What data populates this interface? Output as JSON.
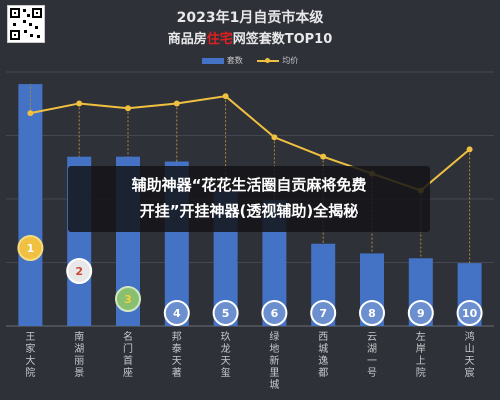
{
  "header": {
    "title_line1": "2023年1月自贡市本级",
    "title_line2_before": "商品房",
    "title_line2_highlight": "住宅",
    "title_line2_after": "网签套数TOP10"
  },
  "overlay_caption": "辅助神器“花花生活圈自贡麻将免费\n开挂”开挂神器(透视辅助)全揭秘",
  "colors": {
    "bar": "#4472c4",
    "line": "#f0c040",
    "background": "#2e3138",
    "badge_gold": "#f0c040",
    "badge_silver": "#e8e8e8",
    "badge_bronze": "#88c070",
    "badge_blue": "#6b8fcf",
    "highlight_red": "#e02020"
  },
  "chart_data": {
    "type": "bar",
    "categories": [
      "王家大院",
      "南湖丽景",
      "名门首座",
      "邦泰天著",
      "玖龙天玺",
      "绿地新里城",
      "西城逸都",
      "云湖一号",
      "左岸上院",
      "鸿山天宸"
    ],
    "series": [
      {
        "name": "套数",
        "type": "bar",
        "values": [
          100,
          70,
          70,
          68,
          56,
          52,
          34,
          30,
          28,
          26
        ]
      },
      {
        "name": "均价",
        "type": "line",
        "values": [
          88,
          92,
          90,
          92,
          95,
          78,
          70,
          63,
          56,
          73
        ]
      }
    ],
    "ranks": [
      "1",
      "2",
      "3",
      "4",
      "5",
      "6",
      "7",
      "8",
      "9",
      "10"
    ],
    "ylim": [
      0,
      105
    ],
    "grid": true,
    "legend": "top-center"
  }
}
